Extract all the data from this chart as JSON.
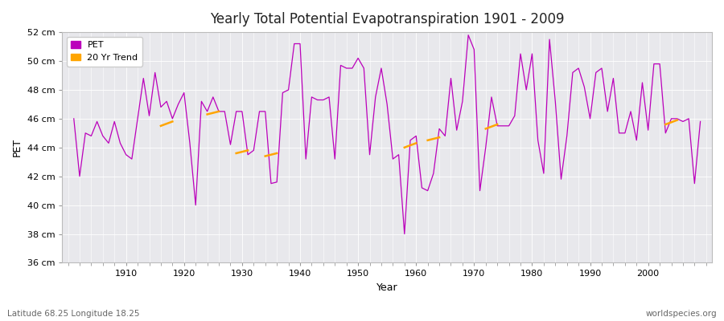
{
  "title": "Yearly Total Potential Evapotranspiration 1901 - 2009",
  "xlabel": "Year",
  "ylabel": "PET",
  "subtitle": "Latitude 68.25 Longitude 18.25",
  "watermark": "worldspecies.org",
  "ylim": [
    36,
    52
  ],
  "ytick_values": [
    36,
    38,
    40,
    42,
    44,
    46,
    48,
    50,
    52
  ],
  "ytick_labels": [
    "36 cm",
    "38 cm",
    "40 cm",
    "42 cm",
    "44 cm",
    "46 cm",
    "48 cm",
    "50 cm",
    "52 cm"
  ],
  "xlim": [
    1899,
    2011
  ],
  "xticks": [
    1910,
    1920,
    1930,
    1940,
    1950,
    1960,
    1970,
    1980,
    1990,
    2000
  ],
  "pet_color": "#BB00BB",
  "trend_color": "#FFA500",
  "fig_bg": "#FFFFFF",
  "plot_bg": "#E8E8EC",
  "grid_color": "#FFFFFF",
  "legend_items": [
    "PET",
    "20 Yr Trend"
  ],
  "years": [
    1901,
    1902,
    1903,
    1904,
    1905,
    1906,
    1907,
    1908,
    1909,
    1910,
    1911,
    1912,
    1913,
    1914,
    1915,
    1916,
    1917,
    1918,
    1919,
    1920,
    1921,
    1922,
    1923,
    1924,
    1925,
    1926,
    1927,
    1928,
    1929,
    1930,
    1931,
    1932,
    1933,
    1934,
    1935,
    1936,
    1937,
    1938,
    1939,
    1940,
    1941,
    1942,
    1943,
    1944,
    1945,
    1946,
    1947,
    1948,
    1949,
    1950,
    1951,
    1952,
    1953,
    1954,
    1955,
    1956,
    1957,
    1958,
    1959,
    1960,
    1961,
    1962,
    1963,
    1964,
    1965,
    1966,
    1967,
    1968,
    1969,
    1970,
    1971,
    1972,
    1973,
    1974,
    1975,
    1976,
    1977,
    1978,
    1979,
    1980,
    1981,
    1982,
    1983,
    1984,
    1985,
    1986,
    1987,
    1988,
    1989,
    1990,
    1991,
    1992,
    1993,
    1994,
    1995,
    1996,
    1997,
    1998,
    1999,
    2000,
    2001,
    2002,
    2003,
    2004,
    2005,
    2006,
    2007,
    2008,
    2009
  ],
  "pet_values": [
    46.0,
    42.0,
    45.0,
    44.8,
    45.8,
    44.8,
    44.3,
    45.8,
    44.3,
    43.5,
    43.2,
    46.0,
    48.8,
    46.2,
    49.2,
    46.8,
    47.2,
    46.0,
    47.0,
    47.8,
    44.3,
    40.0,
    47.2,
    46.5,
    47.5,
    46.5,
    46.5,
    44.2,
    46.5,
    46.5,
    43.5,
    43.8,
    46.5,
    46.5,
    41.5,
    41.6,
    47.8,
    48.0,
    51.2,
    51.2,
    43.2,
    47.5,
    47.3,
    47.3,
    47.5,
    43.2,
    49.7,
    49.5,
    49.5,
    50.2,
    49.5,
    43.5,
    47.5,
    49.5,
    47.0,
    43.2,
    43.5,
    38.0,
    44.5,
    44.8,
    41.2,
    41.0,
    42.2,
    45.3,
    44.8,
    48.8,
    45.2,
    47.2,
    51.8,
    50.8,
    41.0,
    44.0,
    47.5,
    45.5,
    45.5,
    45.5,
    46.2,
    50.5,
    48.0,
    50.5,
    44.5,
    42.2,
    51.5,
    47.2,
    41.8,
    44.8,
    49.2,
    49.5,
    48.2,
    46.0,
    49.2,
    49.5,
    46.5,
    48.8,
    45.0,
    45.0,
    46.5,
    44.5,
    48.5,
    45.2,
    49.8,
    49.8,
    45.0,
    46.0,
    46.0,
    45.8,
    46.0,
    41.5,
    45.8
  ],
  "trend_segments": [
    {
      "x": [
        1916,
        1918
      ],
      "y": [
        45.5,
        45.8
      ]
    },
    {
      "x": [
        1924,
        1926
      ],
      "y": [
        46.3,
        46.5
      ]
    },
    {
      "x": [
        1929,
        1931
      ],
      "y": [
        43.6,
        43.8
      ]
    },
    {
      "x": [
        1934,
        1936
      ],
      "y": [
        43.4,
        43.6
      ]
    },
    {
      "x": [
        1958,
        1960
      ],
      "y": [
        44.0,
        44.3
      ]
    },
    {
      "x": [
        1962,
        1964
      ],
      "y": [
        44.5,
        44.7
      ]
    },
    {
      "x": [
        1972,
        1974
      ],
      "y": [
        45.3,
        45.6
      ]
    },
    {
      "x": [
        2003,
        2005
      ],
      "y": [
        45.6,
        45.9
      ]
    }
  ]
}
